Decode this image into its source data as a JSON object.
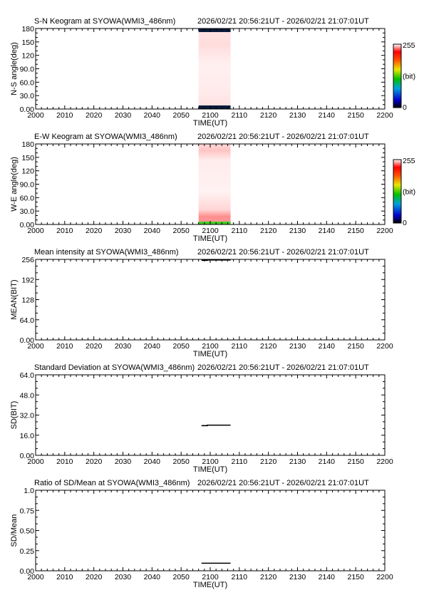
{
  "chart_data": [
    {
      "type": "heatmap",
      "title": "S-N Keogram at SYOWA(WMI3_486nm)",
      "time_range": "2026/02/21 20:56:21UT - 2026/02/21 21:07:01UT",
      "xlabel": "TIME(UT)",
      "ylabel": "N-S angle(deg)",
      "x_ticks": [
        "2000",
        "2010",
        "2020",
        "2030",
        "2040",
        "2050",
        "2100",
        "2110",
        "2120",
        "2130",
        "2140",
        "2150",
        "2200"
      ],
      "y_ticks": [
        "0.00",
        "30.0",
        "60.0",
        "90.0",
        "120",
        "150",
        "180"
      ],
      "ylim": [
        0,
        180
      ],
      "data_x_range": [
        "2056",
        "2107"
      ],
      "colorbar": {
        "max_label": "255",
        "unit_label": "(bit)",
        "min_label": "0"
      }
    },
    {
      "type": "heatmap",
      "title": "E-W Keogram at SYOWA(WMI3_486nm)",
      "time_range": "2026/02/21 20:56:21UT - 2026/02/21 21:07:01UT",
      "xlabel": "TIME(UT)",
      "ylabel": "W-E angle(deg)",
      "x_ticks": [
        "2000",
        "2010",
        "2020",
        "2030",
        "2040",
        "2050",
        "2100",
        "2110",
        "2120",
        "2130",
        "2140",
        "2150",
        "2200"
      ],
      "y_ticks": [
        "0.00",
        "30.0",
        "60.0",
        "90.0",
        "120",
        "150",
        "180"
      ],
      "ylim": [
        0,
        180
      ],
      "data_x_range": [
        "2056",
        "2107"
      ],
      "colorbar": {
        "max_label": "255",
        "unit_label": "(bit)",
        "min_label": "0"
      }
    },
    {
      "type": "line",
      "title": "Mean intensity at SYOWA(WMI3_486nm)",
      "time_range": "2026/02/21 20:56:21UT - 2026/02/21 21:07:01UT",
      "xlabel": "TIME(UT)",
      "ylabel": "MEAN(BIT)",
      "x_ticks": [
        "2000",
        "2010",
        "2020",
        "2030",
        "2040",
        "2050",
        "2100",
        "2110",
        "2120",
        "2130",
        "2140",
        "2150",
        "2200"
      ],
      "y_ticks": [
        "0.00",
        "64.0",
        "128",
        "192",
        "256"
      ],
      "ylim": [
        0,
        256
      ],
      "series": [
        {
          "x": [
            "2057",
            "2059",
            "2059",
            "2107"
          ],
          "y": [
            253,
            253,
            254,
            254
          ]
        }
      ]
    },
    {
      "type": "line",
      "title": "Standard Deviation at SYOWA(WMI3_486nm)",
      "time_range": "2026/02/21 20:56:21UT - 2026/02/21 21:07:01UT",
      "xlabel": "TIME(UT)",
      "ylabel": "SD(BIT)",
      "x_ticks": [
        "2000",
        "2010",
        "2020",
        "2030",
        "2040",
        "2050",
        "2100",
        "2110",
        "2120",
        "2130",
        "2140",
        "2150",
        "2200"
      ],
      "y_ticks": [
        "0.00",
        "16.0",
        "32.0",
        "48.0",
        "64.0"
      ],
      "ylim": [
        0,
        64
      ],
      "series": [
        {
          "x": [
            "2057",
            "2059",
            "2059",
            "2107"
          ],
          "y": [
            23.6,
            23.6,
            24.0,
            24.0
          ]
        }
      ]
    },
    {
      "type": "line",
      "title": "Ratio of SD/Mean at SYOWA(WMI3_486nm)",
      "time_range": "2026/02/21 20:56:21UT - 2026/02/21 21:07:01UT",
      "xlabel": "TIME(UT)",
      "ylabel": "SD/Mean",
      "x_ticks": [
        "2000",
        "2010",
        "2020",
        "2030",
        "2040",
        "2050",
        "2100",
        "2110",
        "2120",
        "2130",
        "2140",
        "2150",
        "2200"
      ],
      "y_ticks": [
        "0.00",
        "0.25",
        "0.50",
        "0.75",
        "1.0"
      ],
      "ylim": [
        0,
        1.0
      ],
      "series": [
        {
          "x": [
            "2057",
            "2107"
          ],
          "y": [
            0.094,
            0.094
          ]
        }
      ]
    }
  ]
}
